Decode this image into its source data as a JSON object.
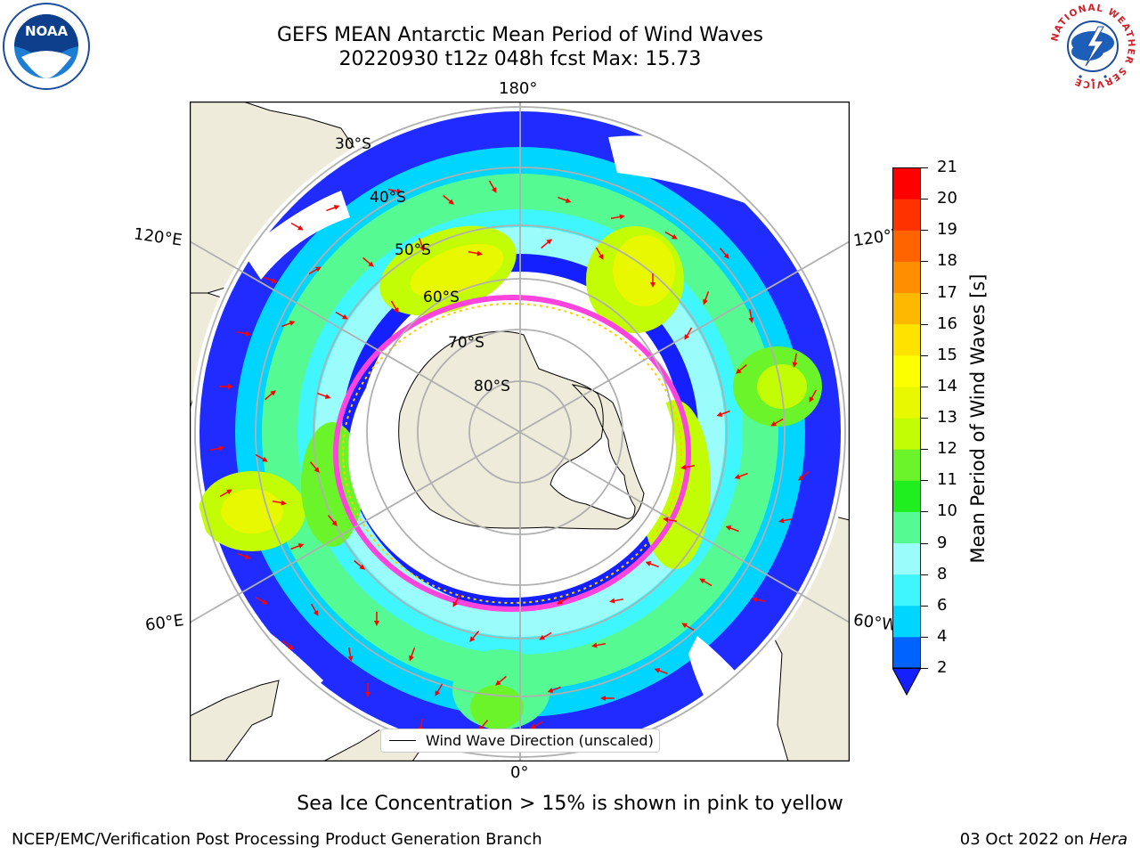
{
  "header": {
    "title_line1": "GEFS MEAN Antarctic Mean Period of Wind Waves",
    "title_line2": "20220930 t12z 048h fcst   Max: 15.73"
  },
  "logos": {
    "noaa": {
      "text": "NOAA",
      "ring_text": "NATIONAL OCEANIC AND ATMOSPHERIC ADMINISTRATION · U.S. DEPARTMENT OF COMMERCE"
    },
    "nws": {
      "ring_text": "NATIONAL WEATHER SERVICE"
    }
  },
  "map": {
    "projection": "south-polar-stereographic",
    "longitude_labels": {
      "top": "180°",
      "bottom": "0°",
      "upper_left": "120°E",
      "upper_right": "120°W",
      "lower_left": "60°E",
      "lower_right": "60°W"
    },
    "latitude_labels": [
      "30°S",
      "40°S",
      "50°S",
      "60°S",
      "70°S",
      "80°S"
    ],
    "colors": {
      "land": "#efebdb",
      "ocean_no_data": "#ffffff",
      "graticule": "#b0b0b0",
      "arrow": "#ff0000",
      "ice_edge_pink": "#ff44dd",
      "ice_edge_yellow": "#ffcc00"
    },
    "legend_label": "Wind Wave Direction (unscaled)"
  },
  "colorbar": {
    "label": "Mean Period of Wind Waves [s]",
    "ticks": [
      "2",
      "4",
      "6",
      "8",
      "9",
      "10",
      "11",
      "12",
      "13",
      "14",
      "15",
      "16",
      "17",
      "18",
      "19",
      "20",
      "21"
    ],
    "colors": [
      "#0063ff",
      "#00d5ff",
      "#3ff6ff",
      "#9bfdfb",
      "#56fa92",
      "#1fef1f",
      "#6cf42a",
      "#c2fc05",
      "#e8f800",
      "#fcff00",
      "#ffe300",
      "#ffb800",
      "#ff8e00",
      "#ff6400",
      "#ff3200",
      "#ff0000"
    ],
    "extend_color": "#1420ff",
    "extend": "min"
  },
  "footer": {
    "caption": "Sea Ice Concentration > 15% is shown in pink to yellow",
    "left": "NCEP/EMC/Verification Post Processing Product Generation Branch",
    "right_date": "03 Oct 2022 on",
    "right_host": "Hera"
  }
}
